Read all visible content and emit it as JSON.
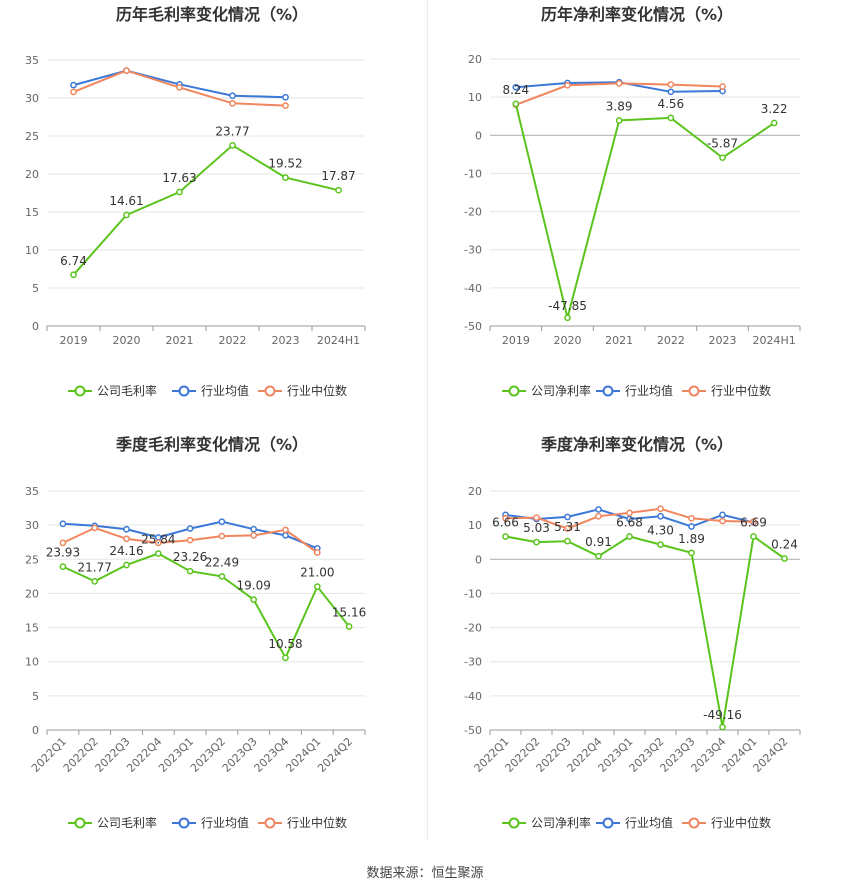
{
  "colors": {
    "company": "#5ac41d",
    "industry_avg": "#3b78d8",
    "industry_median": "#f0855e",
    "grid": "#e6e6e6",
    "axis_text": "#666666"
  },
  "legend": {
    "company_gross": "公司毛利率",
    "company_net": "公司净利率",
    "industry_avg": "行业均值",
    "industry_median": "行业中位数"
  },
  "source_text": "数据来源：恒生聚源",
  "chart_data": [
    {
      "id": "annual-gross",
      "type": "line",
      "title": "历年毛利率变化情况（%）",
      "categories": [
        "2019",
        "2020",
        "2021",
        "2022",
        "2023",
        "2024H1"
      ],
      "ylim": [
        0,
        35
      ],
      "yticks": [
        0,
        5,
        10,
        15,
        20,
        25,
        30,
        35
      ],
      "series": [
        {
          "name": "公司毛利率",
          "values": [
            6.74,
            14.61,
            17.63,
            23.77,
            19.52,
            17.87
          ],
          "labels": [
            "6.74",
            "14.61",
            "17.63",
            "23.77",
            "19.52",
            "17.87"
          ]
        },
        {
          "name": "行业均值",
          "values": [
            31.7,
            33.6,
            31.8,
            30.3,
            30.1,
            null
          ]
        },
        {
          "name": "行业中位数",
          "values": [
            30.8,
            33.6,
            31.4,
            29.3,
            29.0,
            null
          ]
        }
      ]
    },
    {
      "id": "annual-net",
      "type": "line",
      "title": "历年净利率变化情况（%）",
      "categories": [
        "2019",
        "2020",
        "2021",
        "2022",
        "2023",
        "2024H1"
      ],
      "ylim": [
        -50,
        20
      ],
      "yticks": [
        -50,
        -40,
        -30,
        -20,
        -10,
        0,
        10,
        20
      ],
      "series": [
        {
          "name": "公司净利率",
          "values": [
            8.24,
            -47.85,
            3.89,
            4.56,
            -5.87,
            3.22
          ],
          "labels": [
            "8.24",
            "-47.85",
            "3.89",
            "4.56",
            "-5.87",
            "3.22"
          ]
        },
        {
          "name": "行业均值",
          "values": [
            12.6,
            13.7,
            13.9,
            11.4,
            11.6,
            null
          ]
        },
        {
          "name": "行业中位数",
          "values": [
            8.0,
            13.1,
            13.6,
            13.3,
            12.8,
            null
          ]
        }
      ]
    },
    {
      "id": "quarterly-gross",
      "type": "line",
      "title": "季度毛利率变化情况（%）",
      "categories": [
        "2022Q1",
        "2022Q2",
        "2022Q3",
        "2022Q4",
        "2023Q1",
        "2023Q2",
        "2023Q3",
        "2023Q4",
        "2024Q1",
        "2024Q2"
      ],
      "ylim": [
        0,
        35
      ],
      "yticks": [
        0,
        5,
        10,
        15,
        20,
        25,
        30,
        35
      ],
      "series": [
        {
          "name": "公司毛利率",
          "values": [
            23.93,
            21.77,
            24.16,
            25.84,
            23.26,
            22.49,
            19.09,
            10.58,
            21.0,
            15.16
          ],
          "labels": [
            "23.93",
            "21.77",
            "24.16",
            "25.84",
            "23.26",
            "22.49",
            "19.09",
            "10.58",
            "21.00",
            "15.16"
          ]
        },
        {
          "name": "行业均值",
          "values": [
            30.2,
            29.9,
            29.4,
            28.2,
            29.5,
            30.5,
            29.4,
            28.5,
            26.6,
            null
          ]
        },
        {
          "name": "行业中位数",
          "values": [
            27.4,
            29.6,
            28.0,
            27.4,
            27.8,
            28.4,
            28.5,
            29.3,
            26.0,
            null
          ]
        }
      ]
    },
    {
      "id": "quarterly-net",
      "type": "line",
      "title": "季度净利率变化情况（%）",
      "categories": [
        "2022Q1",
        "2022Q2",
        "2022Q3",
        "2022Q4",
        "2023Q1",
        "2023Q2",
        "2023Q3",
        "2023Q4",
        "2024Q1",
        "2024Q2"
      ],
      "ylim": [
        -50,
        20
      ],
      "yticks": [
        -50,
        -40,
        -30,
        -20,
        -10,
        0,
        10,
        20
      ],
      "series": [
        {
          "name": "公司净利率",
          "values": [
            6.66,
            5.03,
            5.31,
            0.91,
            6.68,
            4.3,
            1.89,
            -49.16,
            6.69,
            0.24
          ],
          "labels": [
            "6.66",
            "5.03",
            "5.31",
            "0.91",
            "6.68",
            "4.30",
            "1.89",
            "-49.16",
            "6.69",
            "0.24"
          ]
        },
        {
          "name": "行业均值",
          "values": [
            13.0,
            11.8,
            12.4,
            14.6,
            11.8,
            12.6,
            9.6,
            13.0,
            10.8,
            null
          ]
        },
        {
          "name": "行业中位数",
          "values": [
            12.0,
            12.2,
            9.0,
            12.6,
            13.6,
            14.8,
            12.0,
            11.2,
            11.0,
            null
          ]
        }
      ]
    }
  ]
}
